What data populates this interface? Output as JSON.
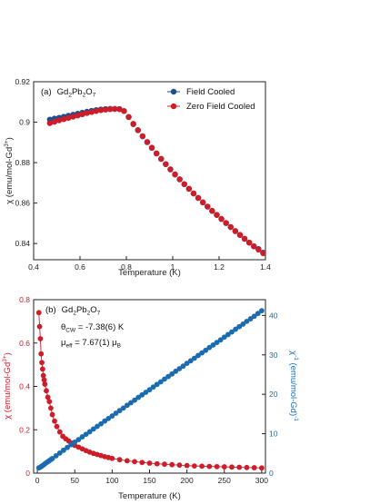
{
  "chart_data": [
    {
      "panel": "a",
      "type": "scatter",
      "panel_label": "(a)",
      "compound": {
        "base": "Gd",
        "s1": "2",
        "mid": "Pb",
        "s2": "2",
        "end": "O",
        "s3": "7"
      },
      "xlabel": "Temperature (K)",
      "ylabel": {
        "base": "χ (emu/mol-Gd",
        "sup": "3+",
        "end": ")"
      },
      "xlim": [
        0.4,
        1.4
      ],
      "ylim": [
        0.832,
        0.92
      ],
      "xticks": [
        "0.4",
        "0.6",
        "0.8",
        "1",
        "1.2",
        "1.4"
      ],
      "yticks": [
        "0.84",
        "0.86",
        "0.88",
        "0.9",
        "0.92"
      ],
      "legend_position": "top-right",
      "series": [
        {
          "name": "Field Cooled",
          "color": "#1b4f8e",
          "x": [
            0.47,
            0.49,
            0.51,
            0.53,
            0.55,
            0.57,
            0.59,
            0.61,
            0.63,
            0.65,
            0.67,
            0.69,
            0.71,
            0.73,
            0.75,
            0.77,
            0.79,
            0.81,
            0.83,
            0.85,
            0.87,
            0.89,
            0.91,
            0.93,
            0.95,
            0.97,
            0.99,
            1.01,
            1.03,
            1.05,
            1.07,
            1.09,
            1.11,
            1.13,
            1.15,
            1.17,
            1.19,
            1.21,
            1.23,
            1.25,
            1.27,
            1.29,
            1.31,
            1.33,
            1.35,
            1.37,
            1.39
          ],
          "y": [
            0.9013,
            0.9018,
            0.9022,
            0.9027,
            0.9032,
            0.9037,
            0.9042,
            0.9047,
            0.9052,
            0.9056,
            0.906,
            0.9063,
            0.9065,
            0.9066,
            0.9066,
            0.9065,
            0.9055,
            0.9025,
            0.899,
            0.896,
            0.893,
            0.8901,
            0.8873,
            0.8845,
            0.8818,
            0.8792,
            0.8766,
            0.8741,
            0.8717,
            0.8693,
            0.867,
            0.8647,
            0.8625,
            0.8603,
            0.8582,
            0.8561,
            0.8541,
            0.8521,
            0.8501,
            0.8481,
            0.8461,
            0.8442,
            0.8423,
            0.8404,
            0.8386,
            0.8373,
            0.8355
          ]
        },
        {
          "name": "Zero Field Cooled",
          "color": "#cc1d29",
          "x": [
            0.47,
            0.49,
            0.51,
            0.53,
            0.55,
            0.57,
            0.59,
            0.61,
            0.63,
            0.65,
            0.67,
            0.69,
            0.71,
            0.73,
            0.75,
            0.77,
            0.79,
            0.81,
            0.83,
            0.85,
            0.87,
            0.89,
            0.91,
            0.93,
            0.95,
            0.97,
            0.99,
            1.01,
            1.03,
            1.05,
            1.07,
            1.09,
            1.11,
            1.13,
            1.15,
            1.17,
            1.19,
            1.21,
            1.23,
            1.25,
            1.27,
            1.29,
            1.31,
            1.33,
            1.35,
            1.37,
            1.39
          ],
          "y": [
            0.8995,
            0.9002,
            0.9009,
            0.9015,
            0.9021,
            0.9027,
            0.9033,
            0.9039,
            0.9045,
            0.905,
            0.9055,
            0.9059,
            0.9062,
            0.9064,
            0.9065,
            0.9064,
            0.9055,
            0.9026,
            0.8992,
            0.8961,
            0.8931,
            0.8902,
            0.8874,
            0.8846,
            0.8819,
            0.8793,
            0.8767,
            0.8742,
            0.8718,
            0.8694,
            0.8671,
            0.8648,
            0.8626,
            0.8604,
            0.8583,
            0.8562,
            0.8542,
            0.8522,
            0.8502,
            0.8482,
            0.8462,
            0.8443,
            0.8424,
            0.8405,
            0.8387,
            0.837,
            0.8352
          ]
        }
      ]
    },
    {
      "panel": "b",
      "type": "scatter",
      "panel_label": "(b)",
      "compound": {
        "base": "Gd",
        "s1": "2",
        "mid": "Pb",
        "s2": "2",
        "end": "O",
        "s3": "7"
      },
      "theta_line": {
        "sym": "θ",
        "sub": "CW",
        "text": " = -7.38(6) K"
      },
      "mu_line": {
        "sym": "μ",
        "sub": "eff",
        "text": " = 7.67(1) μ",
        "unit_sub": "B"
      },
      "xlabel": "Temperature (K)",
      "ylabel_left": {
        "base": "χ (emu/mol-Gd",
        "sup": "3+",
        "end": ")"
      },
      "ylabel_right": {
        "base": "χ",
        "sup1": "-1",
        "mid": " (emu/mol-Gd)",
        "sup2": "-1"
      },
      "xlim": [
        -5,
        305
      ],
      "ylim_left": [
        0,
        0.8
      ],
      "ylim_right": [
        0,
        44
      ],
      "xticks": [
        "0",
        "50",
        "100",
        "150",
        "200",
        "250",
        "300"
      ],
      "yticks_left": [
        "0",
        "0.2",
        "0.4",
        "0.6",
        "0.8"
      ],
      "yticks_right": [
        "0",
        "10",
        "20",
        "30",
        "40"
      ],
      "series": [
        {
          "name": "χ",
          "axis": "left",
          "color": "#cc1d29",
          "x": [
            2,
            3,
            4,
            5,
            6,
            7,
            8,
            9,
            10,
            12,
            14,
            16,
            18,
            20,
            23,
            26,
            30,
            34,
            38,
            42,
            46,
            50,
            55,
            60,
            65,
            70,
            75,
            80,
            85,
            90,
            95,
            100,
            110,
            120,
            130,
            140,
            150,
            160,
            170,
            180,
            190,
            200,
            210,
            220,
            230,
            240,
            250,
            260,
            270,
            280,
            290,
            300
          ],
          "y": [
            0.74,
            0.676,
            0.62,
            0.55,
            0.51,
            0.48,
            0.45,
            0.43,
            0.41,
            0.38,
            0.35,
            0.33,
            0.3,
            0.27,
            0.24,
            0.215,
            0.19,
            0.17,
            0.158,
            0.148,
            0.138,
            0.128,
            0.12,
            0.112,
            0.104,
            0.097,
            0.091,
            0.086,
            0.081,
            0.076,
            0.072,
            0.068,
            0.062,
            0.057,
            0.053,
            0.049,
            0.046,
            0.043,
            0.041,
            0.039,
            0.037,
            0.035,
            0.033,
            0.032,
            0.031,
            0.03,
            0.029,
            0.028,
            0.027,
            0.026,
            0.025,
            0.024
          ]
        },
        {
          "name": "χ-1",
          "axis": "right",
          "color": "#1a6bb0",
          "x": [
            2,
            4,
            6,
            8,
            10,
            12,
            14,
            16,
            18,
            20,
            25,
            30,
            35,
            40,
            45,
            50,
            55,
            60,
            65,
            70,
            75,
            80,
            85,
            90,
            95,
            100,
            105,
            110,
            115,
            120,
            125,
            130,
            135,
            140,
            145,
            150,
            155,
            160,
            165,
            170,
            175,
            180,
            185,
            190,
            195,
            200,
            205,
            210,
            215,
            220,
            225,
            230,
            235,
            240,
            245,
            250,
            255,
            260,
            265,
            270,
            275,
            280,
            285,
            290,
            295,
            300
          ],
          "y": [
            1.35,
            1.5,
            1.8,
            2.05,
            2.35,
            2.65,
            2.9,
            3.15,
            3.45,
            3.7,
            4.4,
            5.1,
            5.8,
            6.5,
            7.2,
            7.85,
            8.5,
            9.2,
            9.85,
            10.5,
            11.2,
            11.85,
            12.5,
            13.2,
            13.85,
            14.5,
            15.2,
            15.85,
            16.5,
            17.2,
            17.85,
            18.5,
            19.2,
            19.85,
            20.5,
            21.15,
            21.85,
            22.5,
            23.15,
            23.85,
            24.5,
            25.15,
            25.85,
            26.5,
            27.15,
            27.85,
            28.5,
            29.15,
            29.85,
            30.5,
            31.15,
            31.85,
            32.5,
            33.15,
            33.8,
            34.5,
            35.15,
            35.8,
            36.5,
            37.15,
            37.8,
            38.5,
            39.15,
            39.8,
            40.5,
            41.2
          ]
        }
      ]
    }
  ]
}
